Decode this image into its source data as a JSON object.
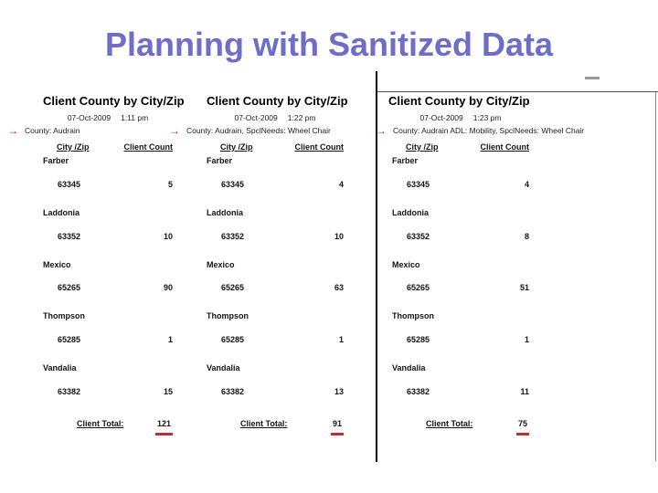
{
  "slide": {
    "title": "Planning with Sanitized Data"
  },
  "icons": {
    "red_arrow": "→"
  },
  "colors": {
    "title": "#6e6ec8",
    "annotation_red": "#b71c1c",
    "total_underline_red": "#b73333"
  },
  "panels": [
    {
      "title": "Client County by City/Zip",
      "date": "07-Oct-2009",
      "time": "1:11 pm",
      "filter": "County: Audrain",
      "col_city": "City /Zip",
      "col_count": "Client Count",
      "rows": [
        {
          "city": "Farber",
          "zip": "63345",
          "count": "5"
        },
        {
          "city": "Laddonia",
          "zip": "63352",
          "count": "10"
        },
        {
          "city": "Mexico",
          "zip": "65265",
          "count": "90"
        },
        {
          "city": "Thompson",
          "zip": "65285",
          "count": "1"
        },
        {
          "city": "Vandalia",
          "zip": "63382",
          "count": "15"
        }
      ],
      "total_label": "Client Total:",
      "total": "121"
    },
    {
      "title": "Client County by City/Zip",
      "date": "07-Oct-2009",
      "time": "1:22 pm",
      "filter": "County: Audrain,  SpclNeeds: Wheel Chair",
      "col_city": "City /Zip",
      "col_count": "Client Count",
      "rows": [
        {
          "city": "Farber",
          "zip": "63345",
          "count": "4"
        },
        {
          "city": "Laddonia",
          "zip": "63352",
          "count": "10"
        },
        {
          "city": "Mexico",
          "zip": "65265",
          "count": "63"
        },
        {
          "city": "Thompson",
          "zip": "65285",
          "count": "1"
        },
        {
          "city": "Vandalia",
          "zip": "63382",
          "count": "13"
        }
      ],
      "total_label": "Client Total:",
      "total": "91"
    },
    {
      "title": "Client County by City/Zip",
      "date": "07-Oct-2009",
      "time": "1:23 pm",
      "filter": "County: Audrain  ADL: Mobility,  SpclNeeds: Wheel Chair",
      "col_city": "City /Zip",
      "col_count": "Client Count",
      "rows": [
        {
          "city": "Farber",
          "zip": "63345",
          "count": "4"
        },
        {
          "city": "Laddonia",
          "zip": "63352",
          "count": "8"
        },
        {
          "city": "Mexico",
          "zip": "65265",
          "count": "51"
        },
        {
          "city": "Thompson",
          "zip": "65285",
          "count": "1"
        },
        {
          "city": "Vandalia",
          "zip": "63382",
          "count": "11"
        }
      ],
      "total_label": "Client Total:",
      "total": "75"
    }
  ]
}
